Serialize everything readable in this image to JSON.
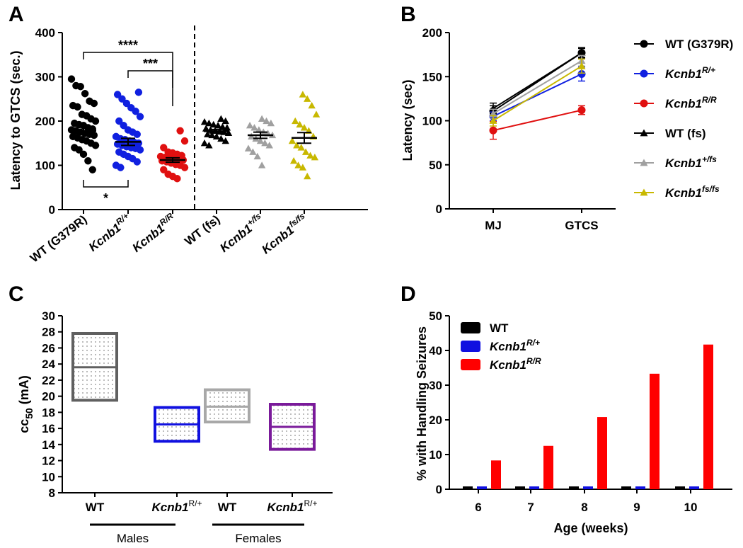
{
  "chart_data": [
    {
      "panel": "A",
      "type": "scatter",
      "ylabel": "Latency to GTCS (sec.)",
      "ylim": [
        0,
        400
      ],
      "yticks": [
        0,
        100,
        200,
        300,
        400
      ],
      "groups": [
        {
          "label": "WT (G379R)",
          "gene": "",
          "sup": "",
          "color": "#000000",
          "marker": "circle",
          "mean": 178,
          "sem": 8,
          "values": [
            295,
            280,
            278,
            262,
            245,
            240,
            235,
            232,
            215,
            212,
            205,
            200,
            195,
            192,
            190,
            185,
            182,
            180,
            178,
            175,
            172,
            170,
            168,
            165,
            162,
            158,
            155,
            150,
            145,
            140,
            135,
            125,
            110,
            90
          ]
        },
        {
          "label": "",
          "gene": "Kcnb1",
          "sup": "R/+",
          "color": "#1020e0",
          "marker": "circle",
          "mean": 153,
          "sem": 8,
          "values": [
            265,
            260,
            250,
            240,
            230,
            222,
            210,
            200,
            190,
            180,
            175,
            170,
            165,
            160,
            158,
            155,
            152,
            150,
            148,
            145,
            142,
            140,
            138,
            135,
            130,
            125,
            120,
            115,
            108,
            100,
            95
          ]
        },
        {
          "label": "",
          "gene": "Kcnb1",
          "sup": "R/R",
          "color": "#e01010",
          "marker": "circle",
          "mean": 112,
          "sem": 5,
          "values": [
            178,
            155,
            140,
            130,
            128,
            125,
            122,
            120,
            118,
            116,
            115,
            113,
            112,
            110,
            108,
            105,
            102,
            100,
            95,
            90,
            80,
            75,
            70
          ]
        },
        {
          "label": "WT (fs)",
          "gene": "",
          "sup": "",
          "color": "#000000",
          "marker": "triangle",
          "mean": 177,
          "sem": 4,
          "values": [
            205,
            200,
            198,
            195,
            192,
            190,
            187,
            185,
            183,
            180,
            178,
            176,
            175,
            173,
            170,
            168,
            165,
            160,
            155,
            150,
            145
          ]
        },
        {
          "label": "",
          "gene": "Kcnb1",
          "sup": "+/fs",
          "color": "#a0a0a0",
          "marker": "triangle",
          "mean": 168,
          "sem": 7,
          "values": [
            205,
            200,
            195,
            190,
            185,
            180,
            175,
            172,
            168,
            165,
            160,
            155,
            150,
            145,
            138,
            130,
            120,
            100
          ]
        },
        {
          "label": "",
          "gene": "Kcnb1",
          "sup": "fs/fs",
          "color": "#c8b800",
          "marker": "triangle",
          "mean": 162,
          "sem": 12,
          "values": [
            260,
            250,
            235,
            215,
            200,
            192,
            185,
            178,
            165,
            155,
            145,
            140,
            130,
            122,
            118,
            110,
            100,
            95,
            75
          ]
        }
      ],
      "significance": [
        {
          "label": "****",
          "from": 0,
          "to": 2,
          "position": "above"
        },
        {
          "label": "***",
          "from": 1,
          "to": 2,
          "position": "above"
        },
        {
          "label": "*",
          "from": 0,
          "to": 1,
          "position": "below"
        }
      ]
    },
    {
      "panel": "B",
      "type": "line",
      "ylabel": "Latency (sec)",
      "ylim": [
        0,
        200
      ],
      "yticks": [
        0,
        50,
        100,
        150,
        200
      ],
      "categories": [
        "MJ",
        "GTCS"
      ],
      "series": [
        {
          "name": "WT (G379R)",
          "gene": "",
          "sup": "",
          "color": "#000000",
          "marker": "circle",
          "values": [
            111,
            177
          ],
          "err": [
            6,
            6
          ]
        },
        {
          "name": "",
          "gene": "Kcnb1",
          "sup": "R/+",
          "color": "#1020e0",
          "marker": "circle",
          "values": [
            105,
            153
          ],
          "err": [
            5,
            8
          ]
        },
        {
          "name": "",
          "gene": "Kcnb1",
          "sup": "R/R",
          "color": "#e01010",
          "marker": "circle",
          "values": [
            89,
            112
          ],
          "err": [
            10,
            5
          ]
        },
        {
          "name": "WT (fs)",
          "gene": "",
          "sup": "",
          "color": "#000000",
          "marker": "triangle",
          "values": [
            114,
            177
          ],
          "err": [
            6,
            5
          ]
        },
        {
          "name": "",
          "gene": "Kcnb1",
          "sup": "+/fs",
          "color": "#a0a0a0",
          "marker": "triangle",
          "values": [
            108,
            168
          ],
          "err": [
            5,
            6
          ]
        },
        {
          "name": "",
          "gene": "Kcnb1",
          "sup": "fs/fs",
          "color": "#c8b800",
          "marker": "triangle",
          "values": [
            100,
            162
          ],
          "err": [
            6,
            8
          ]
        }
      ]
    },
    {
      "panel": "C",
      "type": "box",
      "ylabel": "cc",
      "ylabel_sub": "50",
      "ylabel_unit": " (mA)",
      "ylim": [
        8,
        30
      ],
      "yticks": [
        8,
        10,
        12,
        14,
        16,
        18,
        20,
        22,
        24,
        26,
        28,
        30
      ],
      "boxes": [
        {
          "label": "WT",
          "gene": "",
          "sup": "",
          "color": "#606060",
          "low": 19.5,
          "mid": 23.6,
          "high": 27.8
        },
        {
          "label": "",
          "gene": "Kcnb1",
          "sup": "R/+",
          "color": "#1010e0",
          "low": 14.4,
          "mid": 16.5,
          "high": 18.6
        },
        {
          "label": "WT",
          "gene": "",
          "sup": "",
          "color": "#a8a8a8",
          "low": 16.8,
          "mid": 18.7,
          "high": 20.8
        },
        {
          "label": "",
          "gene": "Kcnb1",
          "sup": "R/+",
          "color": "#7a1a9a",
          "low": 13.4,
          "mid": 16.2,
          "high": 19.0
        }
      ],
      "group_labels": [
        "Males",
        "Females"
      ]
    },
    {
      "panel": "D",
      "type": "bar",
      "ylabel": "% with Handling Seizures",
      "xlabel": "Age (weeks)",
      "ylim": [
        0,
        50
      ],
      "yticks": [
        0,
        10,
        20,
        30,
        40,
        50
      ],
      "categories": [
        "6",
        "7",
        "8",
        "9",
        "10"
      ],
      "series": [
        {
          "name": "WT",
          "gene": "",
          "sup": "",
          "color": "#000000",
          "values": [
            0,
            0,
            0,
            0,
            0
          ]
        },
        {
          "name": "",
          "gene": "Kcnb1",
          "sup": "R/+",
          "color": "#1010e0",
          "values": [
            0,
            0,
            0,
            0,
            0
          ]
        },
        {
          "name": "",
          "gene": "Kcnb1",
          "sup": "R/R",
          "color": "#ff0000",
          "values": [
            8.3,
            12.5,
            20.8,
            33.3,
            41.7
          ]
        }
      ]
    }
  ],
  "panel_labels": [
    "A",
    "B",
    "C",
    "D"
  ]
}
